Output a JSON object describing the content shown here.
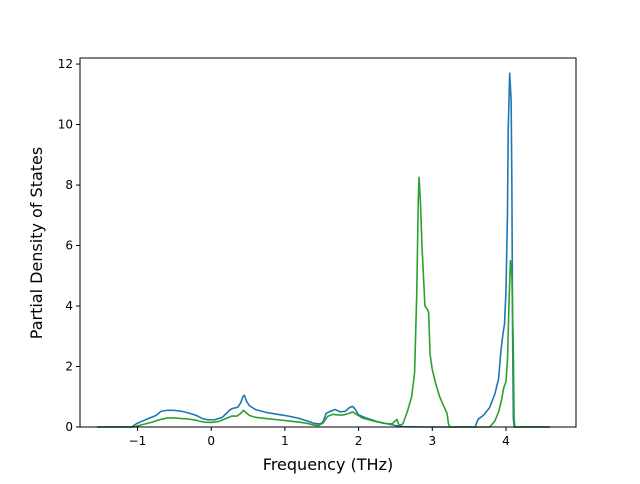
{
  "chart_data": {
    "type": "line",
    "title": "",
    "xlabel": "Frequency (THz)",
    "ylabel": "Partial Density of States",
    "xlim": [
      -1.78,
      4.95
    ],
    "ylim": [
      0,
      12.2
    ],
    "xticks": [
      -1,
      0,
      1,
      2,
      3,
      4
    ],
    "yticks": [
      0,
      2,
      4,
      6,
      8,
      10,
      12
    ],
    "grid": false,
    "legend": "none",
    "series": [
      {
        "color": "#1f77b4",
        "points": [
          [
            -1.55,
            0
          ],
          [
            -1.3,
            0
          ],
          [
            -1.08,
            0
          ],
          [
            -1.02,
            0.1
          ],
          [
            -0.95,
            0.18
          ],
          [
            -0.85,
            0.28
          ],
          [
            -0.75,
            0.38
          ],
          [
            -0.68,
            0.52
          ],
          [
            -0.6,
            0.55
          ],
          [
            -0.5,
            0.55
          ],
          [
            -0.4,
            0.52
          ],
          [
            -0.3,
            0.46
          ],
          [
            -0.2,
            0.38
          ],
          [
            -0.12,
            0.28
          ],
          [
            -0.05,
            0.24
          ],
          [
            0.05,
            0.24
          ],
          [
            0.15,
            0.32
          ],
          [
            0.22,
            0.48
          ],
          [
            0.26,
            0.58
          ],
          [
            0.3,
            0.62
          ],
          [
            0.36,
            0.65
          ],
          [
            0.4,
            0.8
          ],
          [
            0.43,
            1.0
          ],
          [
            0.45,
            1.05
          ],
          [
            0.48,
            0.85
          ],
          [
            0.52,
            0.7
          ],
          [
            0.6,
            0.58
          ],
          [
            0.75,
            0.48
          ],
          [
            0.9,
            0.42
          ],
          [
            1.05,
            0.36
          ],
          [
            1.2,
            0.28
          ],
          [
            1.3,
            0.2
          ],
          [
            1.4,
            0.12
          ],
          [
            1.48,
            0.1
          ],
          [
            1.52,
            0.18
          ],
          [
            1.56,
            0.45
          ],
          [
            1.6,
            0.5
          ],
          [
            1.68,
            0.58
          ],
          [
            1.75,
            0.5
          ],
          [
            1.82,
            0.52
          ],
          [
            1.88,
            0.65
          ],
          [
            1.92,
            0.68
          ],
          [
            1.95,
            0.6
          ],
          [
            2.0,
            0.4
          ],
          [
            2.1,
            0.3
          ],
          [
            2.25,
            0.18
          ],
          [
            2.4,
            0.1
          ],
          [
            2.5,
            0.05
          ],
          [
            2.6,
            0.01
          ],
          [
            2.9,
            0
          ],
          [
            3.3,
            0
          ],
          [
            3.58,
            0
          ],
          [
            3.62,
            0.25
          ],
          [
            3.7,
            0.4
          ],
          [
            3.78,
            0.65
          ],
          [
            3.85,
            1.1
          ],
          [
            3.9,
            1.6
          ],
          [
            3.93,
            2.5
          ],
          [
            3.96,
            3.1
          ],
          [
            3.98,
            3.4
          ],
          [
            4.0,
            4.5
          ],
          [
            4.02,
            7.0
          ],
          [
            4.03,
            9.8
          ],
          [
            4.05,
            11.7
          ],
          [
            4.07,
            10.8
          ],
          [
            4.08,
            8.0
          ],
          [
            4.09,
            3.0
          ],
          [
            4.1,
            0.3
          ],
          [
            4.11,
            0
          ],
          [
            4.6,
            0
          ]
        ]
      },
      {
        "color": "#2ca02c",
        "points": [
          [
            -1.55,
            0
          ],
          [
            -1.3,
            0
          ],
          [
            -1.05,
            0
          ],
          [
            -0.98,
            0.05
          ],
          [
            -0.9,
            0.1
          ],
          [
            -0.8,
            0.16
          ],
          [
            -0.7,
            0.24
          ],
          [
            -0.6,
            0.3
          ],
          [
            -0.5,
            0.3
          ],
          [
            -0.4,
            0.28
          ],
          [
            -0.3,
            0.26
          ],
          [
            -0.2,
            0.22
          ],
          [
            -0.1,
            0.16
          ],
          [
            0.0,
            0.15
          ],
          [
            0.1,
            0.18
          ],
          [
            0.2,
            0.28
          ],
          [
            0.28,
            0.36
          ],
          [
            0.35,
            0.36
          ],
          [
            0.4,
            0.45
          ],
          [
            0.44,
            0.55
          ],
          [
            0.47,
            0.48
          ],
          [
            0.52,
            0.38
          ],
          [
            0.6,
            0.32
          ],
          [
            0.75,
            0.28
          ],
          [
            0.9,
            0.24
          ],
          [
            1.05,
            0.2
          ],
          [
            1.2,
            0.16
          ],
          [
            1.3,
            0.12
          ],
          [
            1.4,
            0.06
          ],
          [
            1.46,
            0.05
          ],
          [
            1.52,
            0.14
          ],
          [
            1.58,
            0.35
          ],
          [
            1.65,
            0.42
          ],
          [
            1.72,
            0.4
          ],
          [
            1.8,
            0.4
          ],
          [
            1.88,
            0.46
          ],
          [
            1.92,
            0.5
          ],
          [
            1.97,
            0.42
          ],
          [
            2.05,
            0.3
          ],
          [
            2.2,
            0.2
          ],
          [
            2.35,
            0.12
          ],
          [
            2.45,
            0.1
          ],
          [
            2.52,
            0.25
          ],
          [
            2.55,
            0.05
          ],
          [
            2.6,
            0.1
          ],
          [
            2.66,
            0.5
          ],
          [
            2.72,
            1.0
          ],
          [
            2.76,
            1.8
          ],
          [
            2.79,
            4.5
          ],
          [
            2.81,
            7.5
          ],
          [
            2.82,
            8.25
          ],
          [
            2.84,
            7.4
          ],
          [
            2.86,
            6.0
          ],
          [
            2.88,
            5.0
          ],
          [
            2.9,
            4.0
          ],
          [
            2.93,
            3.9
          ],
          [
            2.95,
            3.8
          ],
          [
            2.97,
            2.4
          ],
          [
            3.0,
            1.9
          ],
          [
            3.05,
            1.4
          ],
          [
            3.1,
            1.0
          ],
          [
            3.15,
            0.72
          ],
          [
            3.2,
            0.45
          ],
          [
            3.22,
            0.1
          ],
          [
            3.24,
            0
          ],
          [
            3.6,
            0
          ],
          [
            3.78,
            0
          ],
          [
            3.85,
            0.2
          ],
          [
            3.9,
            0.5
          ],
          [
            3.94,
            0.9
          ],
          [
            3.97,
            1.3
          ],
          [
            4.0,
            1.5
          ],
          [
            4.02,
            2.2
          ],
          [
            4.04,
            4.0
          ],
          [
            4.06,
            5.5
          ],
          [
            4.08,
            5.0
          ],
          [
            4.1,
            2.5
          ],
          [
            4.11,
            0.3
          ],
          [
            4.12,
            0
          ],
          [
            4.6,
            0
          ]
        ]
      }
    ]
  }
}
